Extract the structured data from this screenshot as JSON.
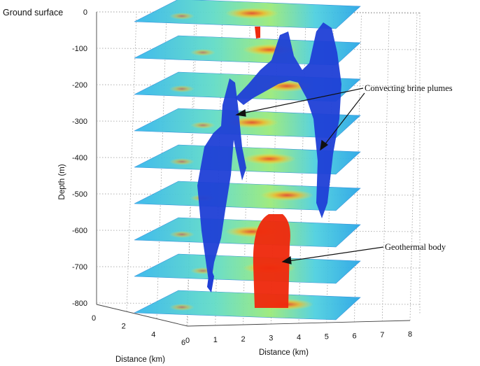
{
  "chart_data": {
    "type": "3d-slice-volume",
    "ground_label": "Ground surface",
    "zlabel": "Depth (m)",
    "xlabel": "Distance (km)",
    "ylabel": "Distance (km)",
    "z_ticks": [
      0,
      -100,
      -200,
      -300,
      -400,
      -500,
      -600,
      -700,
      -800
    ],
    "x_ticks": [
      0,
      1,
      2,
      3,
      4,
      5,
      6,
      7,
      8
    ],
    "y_ticks": [
      0,
      2,
      4,
      6
    ],
    "zlim": [
      -800,
      0
    ],
    "xlim": [
      0,
      8
    ],
    "ylim": [
      0,
      6
    ],
    "slice_depths": [
      0,
      -100,
      -200,
      -300,
      -400,
      -500,
      -600,
      -700,
      -800
    ],
    "grid": true,
    "annotations": [
      {
        "text": "Convecting brine plumes",
        "feature": "brine-plumes"
      },
      {
        "text": "Geothermal body",
        "feature": "geothermal-body"
      }
    ],
    "colors": {
      "brine_plume": "#1f3fd6",
      "geothermal_body": "#ee2a0e",
      "slice_base": "#3fc8e8",
      "slice_hot": "#ff8a1a"
    }
  }
}
